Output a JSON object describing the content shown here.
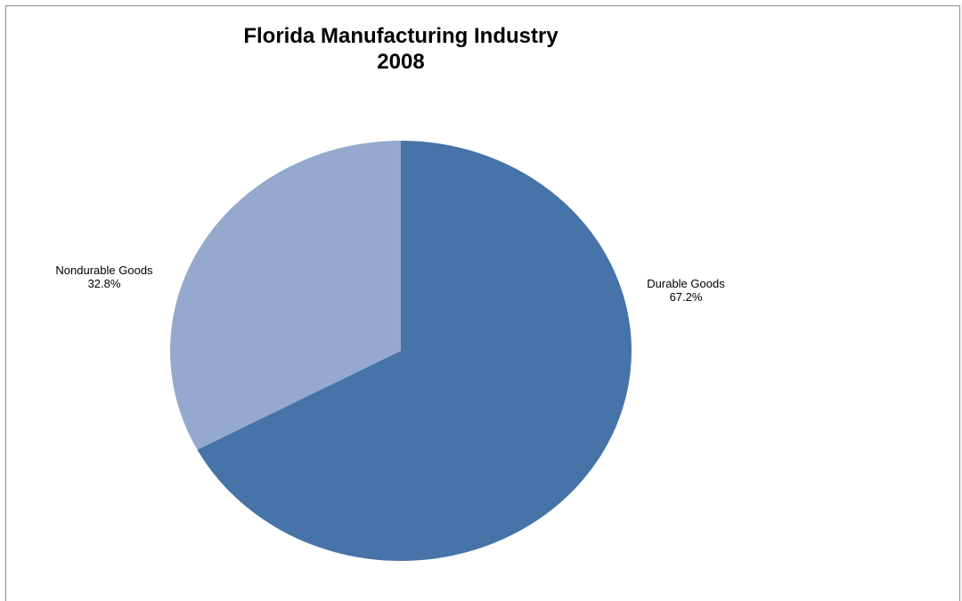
{
  "chart_data": {
    "type": "pie",
    "title": "Florida Manufacturing Industry",
    "subtitle": "2008",
    "categories": [
      "Durable Goods",
      "Nondurable Goods"
    ],
    "values": [
      67.2,
      32.8
    ],
    "value_unit": "%",
    "value_labels": [
      "67.2%",
      "32.8%"
    ],
    "colors": [
      "#4674a8",
      "#95a9cf"
    ],
    "start_angle": "12 o'clock, clockwise",
    "legend": "none (data labels beside slices)"
  }
}
